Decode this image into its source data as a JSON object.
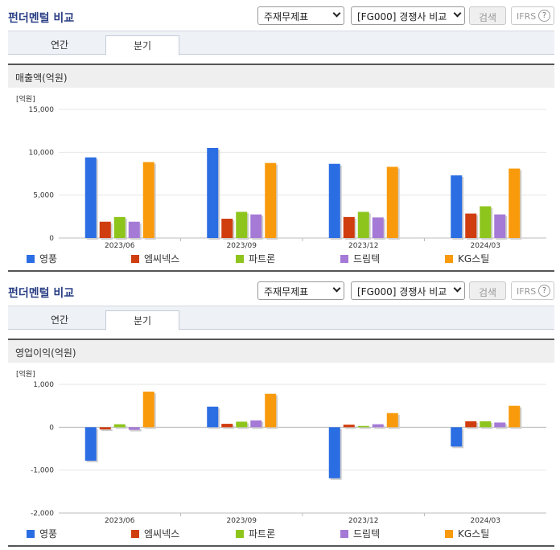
{
  "sections": [
    {
      "title": "펀더멘털 비교",
      "select_statement": "주재무제표",
      "select_peer": "[FG000] 경쟁사 비교",
      "search_label": "검색",
      "ifrs_label": "IFRS",
      "help_glyph": "?",
      "tabs": [
        "연간",
        "분기"
      ],
      "panel_title": "매출액(억원)"
    },
    {
      "title": "펀더멘털 비교",
      "select_statement": "주재무제표",
      "select_peer": "[FG000] 경쟁사 비교",
      "search_label": "검색",
      "ifrs_label": "IFRS",
      "help_glyph": "?",
      "tabs": [
        "연간",
        "분기"
      ],
      "panel_title": "영업이익(억원)"
    }
  ],
  "colors": {
    "영풍": "#2b6de3",
    "엠씨넥스": "#d03d0f",
    "파트론": "#8ec51d",
    "드림텍": "#a57ad6",
    "KG스틸": "#f89a0c"
  },
  "chart_data": [
    {
      "type": "bar",
      "unit_label": "[억원]",
      "categories": [
        "2023/06",
        "2023/09",
        "2023/12",
        "2024/03"
      ],
      "yticks": [
        "15,000",
        "10,000",
        "5,000",
        "0"
      ],
      "ylim": [
        0,
        15000
      ],
      "series": [
        {
          "name": "영풍",
          "values": [
            9400,
            10500,
            8650,
            7300
          ]
        },
        {
          "name": "엠씨넥스",
          "values": [
            1900,
            2250,
            2450,
            2850
          ]
        },
        {
          "name": "파트론",
          "values": [
            2450,
            3050,
            3050,
            3700
          ]
        },
        {
          "name": "드림텍",
          "values": [
            1900,
            2750,
            2400,
            2750
          ]
        },
        {
          "name": "KG스틸",
          "values": [
            8850,
            8750,
            8300,
            8100
          ]
        }
      ],
      "legend": "bottom"
    },
    {
      "type": "bar",
      "unit_label": "[억원]",
      "categories": [
        "2023/06",
        "2023/09",
        "2023/12",
        "2024/03"
      ],
      "yticks": [
        "1,000",
        "0",
        "-1,000",
        "-2,000"
      ],
      "ylim": [
        -2000,
        1000
      ],
      "series": [
        {
          "name": "영풍",
          "values": [
            -780,
            480,
            -1190,
            -450
          ]
        },
        {
          "name": "엠씨넥스",
          "values": [
            -50,
            80,
            60,
            140
          ]
        },
        {
          "name": "파트론",
          "values": [
            70,
            130,
            30,
            140
          ]
        },
        {
          "name": "드림텍",
          "values": [
            -60,
            160,
            70,
            110
          ]
        },
        {
          "name": "KG스틸",
          "values": [
            830,
            780,
            330,
            500
          ]
        }
      ],
      "legend": "bottom"
    }
  ]
}
